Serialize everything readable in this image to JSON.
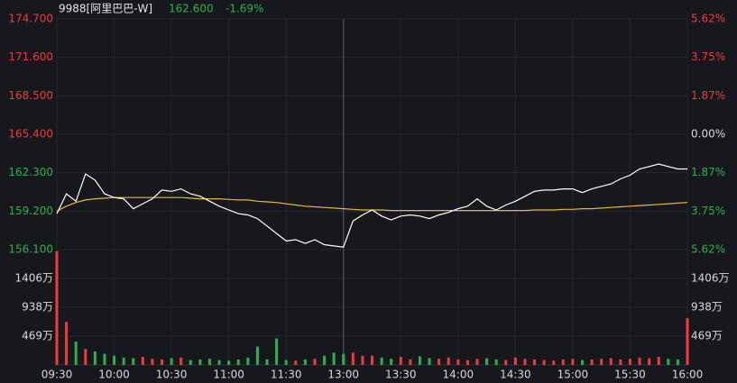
{
  "chart_data": {
    "type": "line",
    "title": "9988[阿里巴巴-W]",
    "last_price": "162.600",
    "change": "-1.69%",
    "up_color": "#f23a3a",
    "down_color": "#2bb24c",
    "flat_color": "#d8d8d8",
    "x": [
      0,
      5,
      10,
      15,
      20,
      25,
      30,
      35,
      40,
      45,
      50,
      55,
      60,
      65,
      70,
      75,
      80,
      85,
      90,
      95,
      100,
      105,
      110,
      115,
      120,
      125,
      130,
      135,
      140,
      145,
      150,
      155,
      160,
      165,
      170,
      175,
      180,
      185,
      190,
      195,
      200,
      205,
      210,
      215,
      220,
      225,
      230,
      235,
      240,
      245,
      250,
      255,
      260,
      265,
      270,
      275,
      280,
      285,
      290,
      295,
      300,
      305,
      310,
      315,
      320,
      325,
      330
    ],
    "xlim": [
      0,
      330
    ],
    "xticks": [
      {
        "value": 0,
        "label": "09:30"
      },
      {
        "value": 30,
        "label": "10:00"
      },
      {
        "value": 60,
        "label": "10:30"
      },
      {
        "value": 90,
        "label": "11:00"
      },
      {
        "value": 120,
        "label": "11:30"
      },
      {
        "value": 150,
        "label": "13:00"
      },
      {
        "value": 180,
        "label": "13:30"
      },
      {
        "value": 210,
        "label": "14:00"
      },
      {
        "value": 240,
        "label": "14:30"
      },
      {
        "value": 270,
        "label": "15:00"
      },
      {
        "value": 300,
        "label": "15:30"
      },
      {
        "value": 330,
        "label": "16:00"
      }
    ],
    "ylim": [
      156.1,
      174.7
    ],
    "yticks": [
      {
        "value": 174.7,
        "label": "174.700"
      },
      {
        "value": 171.6,
        "label": "171.600"
      },
      {
        "value": 168.5,
        "label": "168.500"
      },
      {
        "value": 165.4,
        "label": "165.400"
      },
      {
        "value": 162.3,
        "label": "162.300"
      },
      {
        "value": 159.2,
        "label": "159.200"
      },
      {
        "value": 156.1,
        "label": "156.100"
      }
    ],
    "y2lim": [
      -5.62,
      5.62
    ],
    "y2ticks": [
      {
        "value": 5.62,
        "label": "5.62%"
      },
      {
        "value": 3.75,
        "label": "3.75%"
      },
      {
        "value": 1.87,
        "label": "1.87%"
      },
      {
        "value": 0,
        "label": "0.00%"
      },
      {
        "value": -1.87,
        "label": "1.87%"
      },
      {
        "value": -3.75,
        "label": "3.75%"
      },
      {
        "value": -5.62,
        "label": "5.62%"
      }
    ],
    "series": [
      {
        "color": "#ffffff",
        "values": [
          159.0,
          160.6,
          160.0,
          162.2,
          161.7,
          160.6,
          160.3,
          160.2,
          159.4,
          159.8,
          160.2,
          160.9,
          160.8,
          161.0,
          160.6,
          160.4,
          160.0,
          159.6,
          159.3,
          159.0,
          158.9,
          158.6,
          158.0,
          157.4,
          156.8,
          156.9,
          156.6,
          156.9,
          156.5,
          156.4,
          156.3,
          158.4,
          158.9,
          159.3,
          158.8,
          158.5,
          158.8,
          158.9,
          158.8,
          158.6,
          158.9,
          159.1,
          159.4,
          159.6,
          160.2,
          159.6,
          159.3,
          159.7,
          160.0,
          160.4,
          160.8,
          160.9,
          160.9,
          161.0,
          161.0,
          160.7,
          161.0,
          161.2,
          161.4,
          161.8,
          162.1,
          162.6,
          162.8,
          163.0,
          162.8,
          162.6,
          162.6
        ]
      },
      {
        "color": "#e8b830",
        "values": [
          159.2,
          159.6,
          159.9,
          160.1,
          160.2,
          160.25,
          160.3,
          160.3,
          160.3,
          160.3,
          160.3,
          160.3,
          160.3,
          160.3,
          160.25,
          160.2,
          160.2,
          160.2,
          160.15,
          160.1,
          160.1,
          160.0,
          159.95,
          159.9,
          159.8,
          159.7,
          159.6,
          159.55,
          159.5,
          159.45,
          159.4,
          159.35,
          159.3,
          159.3,
          159.3,
          159.25,
          159.25,
          159.25,
          159.25,
          159.25,
          159.25,
          159.25,
          159.25,
          159.25,
          159.25,
          159.25,
          159.25,
          159.25,
          159.25,
          159.25,
          159.3,
          159.3,
          159.3,
          159.35,
          159.35,
          159.4,
          159.4,
          159.45,
          159.5,
          159.55,
          159.6,
          159.65,
          159.7,
          159.75,
          159.8,
          159.85,
          159.9
        ]
      }
    ],
    "volume": {
      "ylim": [
        0,
        1875
      ],
      "yticks": [
        {
          "value": 1406,
          "label": "1406万"
        },
        {
          "value": 938,
          "label": "938万"
        },
        {
          "value": 469,
          "label": "469万"
        }
      ],
      "values": [
        1850,
        700,
        380,
        260,
        220,
        180,
        150,
        120,
        110,
        130,
        100,
        90,
        110,
        120,
        80,
        90,
        100,
        80,
        70,
        90,
        120,
        300,
        90,
        430,
        80,
        70,
        90,
        100,
        150,
        200,
        180,
        200,
        150,
        150,
        120,
        100,
        130,
        90,
        140,
        110,
        100,
        120,
        90,
        80,
        100,
        110,
        90,
        80,
        120,
        100,
        90,
        80,
        70,
        90,
        100,
        80,
        90,
        100,
        110,
        90,
        100,
        120,
        110,
        130,
        100,
        90,
        760
      ]
    }
  }
}
